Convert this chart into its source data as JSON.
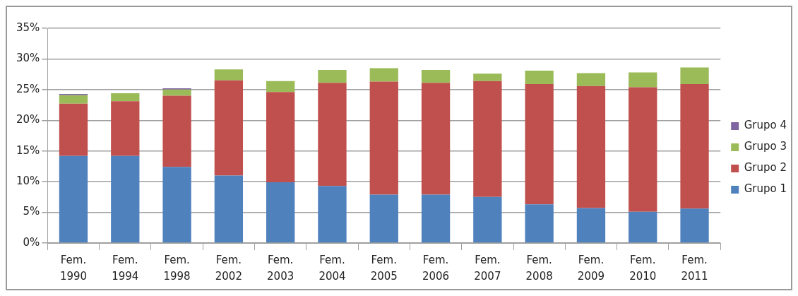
{
  "chart_data": {
    "type": "bar",
    "stacked": true,
    "categories": [
      "Fem. 1990",
      "Fem. 1994",
      "Fem. 1998",
      "Fem. 2002",
      "Fem. 2003",
      "Fem. 2004",
      "Fem. 2005",
      "Fem. 2006",
      "Fem. 2007",
      "Fem. 2008",
      "Fem. 2009",
      "Fem. 2010",
      "Fem. 2011"
    ],
    "series": [
      {
        "name": "Grupo 1",
        "color": "#4f81bd",
        "values": [
          14.2,
          14.2,
          12.4,
          11.0,
          9.9,
          9.3,
          7.9,
          7.9,
          7.5,
          6.3,
          5.7,
          5.1,
          5.6
        ]
      },
      {
        "name": "Grupo 2",
        "color": "#c0504d",
        "values": [
          8.5,
          8.9,
          11.6,
          15.5,
          14.7,
          16.8,
          18.4,
          18.2,
          18.9,
          19.6,
          19.9,
          20.3,
          20.3
        ]
      },
      {
        "name": "Grupo 3",
        "color": "#9bbb59",
        "values": [
          1.4,
          1.3,
          1.0,
          1.8,
          1.8,
          2.1,
          2.2,
          2.1,
          1.2,
          2.2,
          2.1,
          2.4,
          2.7
        ]
      },
      {
        "name": "Grupo 4",
        "color": "#8064a2",
        "values": [
          0.2,
          0,
          0.2,
          0,
          0,
          0,
          0,
          0,
          0,
          0,
          0,
          0,
          0
        ]
      }
    ],
    "ylim": [
      0,
      35
    ],
    "yticks": [
      {
        "value": 0,
        "label": "0%"
      },
      {
        "value": 5,
        "label": "5%"
      },
      {
        "value": 10,
        "label": "10%"
      },
      {
        "value": 15,
        "label": "15%"
      },
      {
        "value": 20,
        "label": "20%"
      },
      {
        "value": 25,
        "label": "25%"
      },
      {
        "value": 30,
        "label": "30%"
      },
      {
        "value": 35,
        "label": "35%"
      }
    ],
    "grid": "y",
    "legend": "right"
  }
}
